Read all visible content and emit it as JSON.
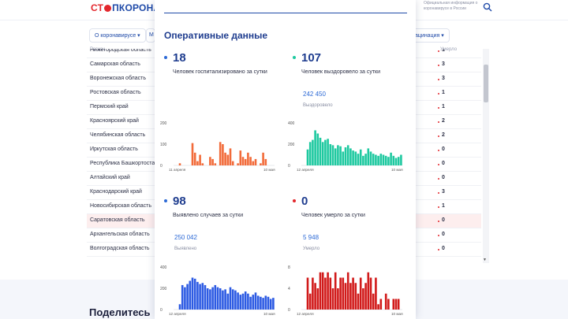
{
  "header": {
    "logo_prefix": "СТ",
    "logo_main": "ПКОРОНАВ",
    "info_text": "Официальная информация о коронавирусе в России"
  },
  "menu": {
    "about": "О коронавирусе ▾",
    "partial": "М",
    "vaccination": "ацинация ▾"
  },
  "table": {
    "head_region": "Регион",
    "head_died": "Умерло",
    "rows": [
      {
        "name": "Нижегородская область",
        "value": "1"
      },
      {
        "name": "Самарская область",
        "value": "3"
      },
      {
        "name": "Воронежская область",
        "value": "3"
      },
      {
        "name": "Ростовская область",
        "value": "1"
      },
      {
        "name": "Пермский край",
        "value": "1"
      },
      {
        "name": "Красноярский край",
        "value": "2"
      },
      {
        "name": "Челябинская область",
        "value": "2"
      },
      {
        "name": "Иркутская область",
        "value": "0"
      },
      {
        "name": "Республика Башкортостан",
        "value": "0"
      },
      {
        "name": "Алтайский край",
        "value": "0"
      },
      {
        "name": "Краснодарский край",
        "value": "3"
      },
      {
        "name": "Новосибирская область",
        "value": "1"
      },
      {
        "name": "Саратовская область",
        "value": "0"
      },
      {
        "name": "Архангельская область",
        "value": "0"
      },
      {
        "name": "Волгоградская область",
        "value": "0"
      }
    ]
  },
  "share": {
    "title": "Поделитесь"
  },
  "panel": {
    "title": "Оперативные данные",
    "stats": [
      {
        "value": "18",
        "desc": "Человек госпитализировано за сутки",
        "total": "",
        "total_label": "",
        "color": "#2d6ad6"
      },
      {
        "value": "107",
        "desc": "Человек выздоровело за сутки",
        "total": "242 450",
        "total_label": "Выздоровело",
        "color": "#1ec9a0"
      },
      {
        "value": "98",
        "desc": "Выявлено случаев за сутки",
        "total": "250 042",
        "total_label": "Выявлено",
        "color": "#2d6ad6"
      },
      {
        "value": "0",
        "desc": "Человек умерло за сутки",
        "total": "5 948",
        "total_label": "Умерло",
        "color": "#e3262c"
      }
    ]
  },
  "chart_data": [
    {
      "type": "bar",
      "title": "",
      "color": "#f26b3a",
      "x_start_label": "11 апреля",
      "x_end_label": "10 мая",
      "yticks": [
        "200",
        "100",
        "0"
      ],
      "ylim": [
        0,
        200
      ],
      "values": [
        0,
        0,
        10,
        0,
        0,
        0,
        0,
        105,
        60,
        20,
        50,
        10,
        0,
        0,
        40,
        30,
        10,
        0,
        110,
        100,
        60,
        50,
        80,
        20,
        0,
        10,
        70,
        40,
        30,
        60,
        40,
        20,
        30,
        0,
        10,
        60,
        30,
        0,
        0,
        0
      ]
    },
    {
      "type": "bar",
      "title": "",
      "color": "#1ec9a0",
      "x_start_label": "12 апреля",
      "x_end_label": "10 мая",
      "yticks": [
        "400",
        "200",
        "0"
      ],
      "ylim": [
        0,
        400
      ],
      "values": [
        0,
        0,
        150,
        220,
        240,
        330,
        300,
        260,
        220,
        240,
        250,
        200,
        190,
        160,
        190,
        180,
        130,
        170,
        190,
        160,
        140,
        130,
        110,
        150,
        90,
        110,
        160,
        130,
        110,
        100,
        90,
        110,
        100,
        90,
        80,
        120,
        90,
        70,
        80,
        100
      ]
    },
    {
      "type": "bar",
      "title": "",
      "color": "#2d5be3",
      "x_start_label": "12 апреля",
      "x_end_label": "10 мая",
      "yticks": [
        "400",
        "200",
        "0"
      ],
      "ylim": [
        0,
        400
      ],
      "values": [
        0,
        0,
        50,
        230,
        210,
        240,
        270,
        300,
        290,
        260,
        240,
        250,
        230,
        200,
        190,
        210,
        230,
        210,
        200,
        180,
        190,
        150,
        210,
        190,
        180,
        160,
        140,
        150,
        170,
        150,
        120,
        140,
        160,
        130,
        120,
        110,
        130,
        120,
        100,
        110
      ]
    },
    {
      "type": "bar",
      "title": "",
      "color": "#d11a1a",
      "x_start_label": "12 апреля",
      "x_end_label": "10 мая",
      "yticks": [
        "8",
        "4",
        "0"
      ],
      "ylim": [
        0,
        8
      ],
      "values": [
        0,
        0,
        6,
        3,
        6,
        5,
        4,
        7,
        7,
        6,
        7,
        6,
        4,
        7,
        4,
        6,
        6,
        5,
        7,
        5,
        6,
        5,
        3,
        6,
        4,
        5,
        7,
        6,
        3,
        6,
        1,
        2,
        0,
        3,
        2,
        0,
        2,
        2,
        2,
        0
      ]
    }
  ]
}
